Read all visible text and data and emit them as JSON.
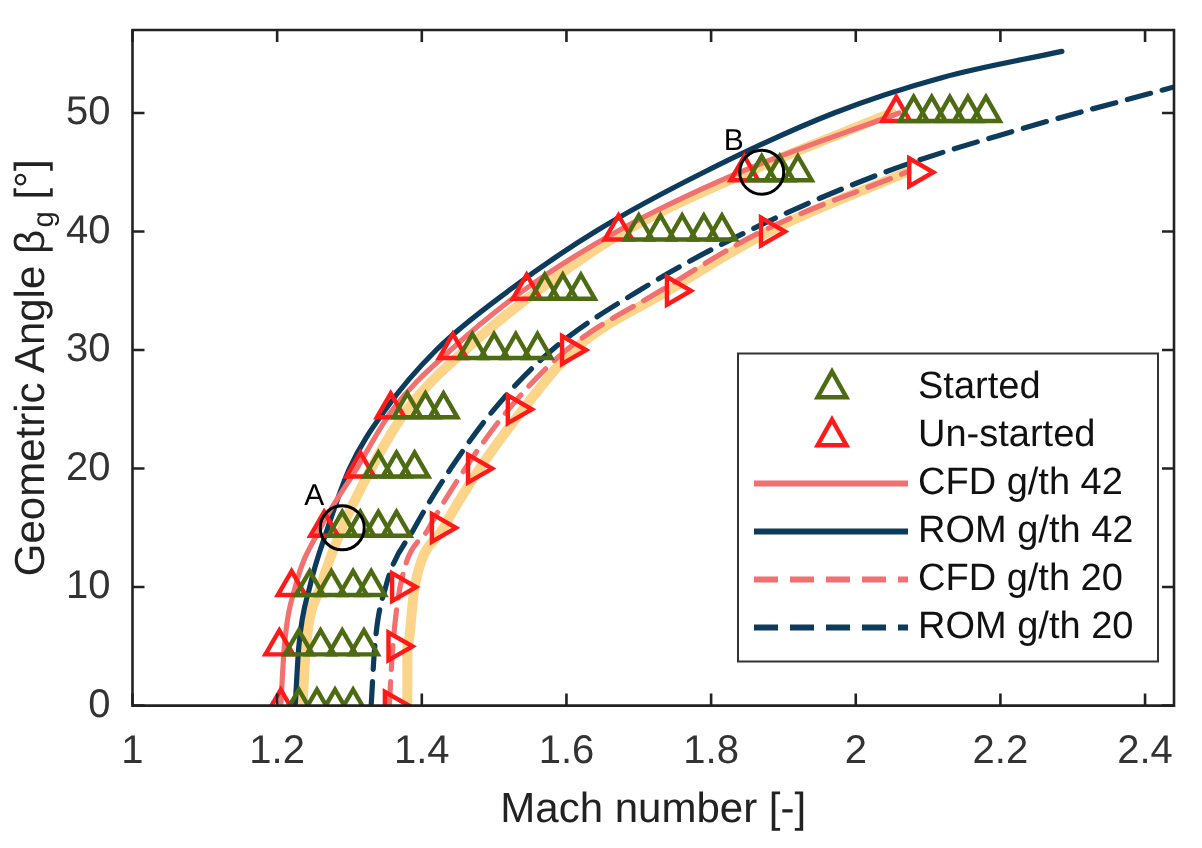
{
  "chart_data": {
    "type": "scatter",
    "xlabel": "Mach number [-]",
    "ylabel": "Geometric Angle β$_{g}$ [°]",
    "xlim": [
      1,
      2.44
    ],
    "xticks": [
      1,
      1.2,
      1.4,
      1.6,
      1.8,
      2,
      2.2,
      2.4
    ],
    "ylim": [
      0,
      57
    ],
    "yticks": [
      0,
      10,
      20,
      30,
      40,
      50
    ],
    "legend": "right",
    "series": [
      {
        "name": "Started",
        "color": "#4d6b12",
        "marker": "triangle",
        "x": [
          1.23,
          1.255,
          1.28,
          1.305,
          1.23,
          1.26,
          1.29,
          1.32,
          1.245,
          1.275,
          1.305,
          1.33,
          1.29,
          1.315,
          1.34,
          1.365,
          1.34,
          1.365,
          1.39,
          1.38,
          1.405,
          1.43,
          1.47,
          1.5,
          1.53,
          1.56,
          1.57,
          1.595,
          1.62,
          1.7,
          1.73,
          1.76,
          1.79,
          1.815,
          1.87,
          1.895,
          1.92,
          2.08,
          2.105,
          2.13,
          2.155,
          2.18
        ],
        "values": [
          0,
          0,
          0,
          0,
          5,
          5,
          5,
          5,
          10,
          10,
          10,
          10,
          15,
          15,
          15,
          15,
          20,
          20,
          20,
          25,
          25,
          25,
          30,
          30,
          30,
          30,
          35,
          35,
          35,
          40,
          40,
          40,
          40,
          40,
          45,
          45,
          45,
          50,
          50,
          50,
          50,
          50
        ]
      },
      {
        "name": "Un-started",
        "color": "#ff1a1a",
        "marker": "triangle",
        "x": [
          1.205,
          1.203,
          1.22,
          1.265,
          1.315,
          1.357,
          1.443,
          1.545,
          1.672,
          1.846,
          2.056
        ],
        "values": [
          0,
          5,
          10,
          15,
          20,
          25,
          30,
          35,
          40,
          45,
          50
        ]
      },
      {
        "name": "CFD g/th 42",
        "type": "line",
        "color": "#f27070",
        "line_style": "solid",
        "marker": "none",
        "x": [
          1.205,
          1.21,
          1.225,
          1.26,
          1.31,
          1.36,
          1.44,
          1.54,
          1.67,
          1.84,
          2.06
        ],
        "values": [
          0,
          5,
          10,
          15,
          20,
          25,
          30,
          35,
          40,
          45,
          50
        ]
      },
      {
        "name": "ROM g/th 42",
        "type": "line",
        "color": "#0d3b5c",
        "line_style": "solid",
        "marker": "none",
        "x": [
          1.225,
          1.23,
          1.245,
          1.27,
          1.3,
          1.35,
          1.42,
          1.52,
          1.64,
          1.79,
          1.97,
          2.12,
          2.285
        ],
        "values": [
          0,
          5,
          10,
          15,
          20,
          25,
          30,
          35,
          40,
          45,
          50,
          53,
          55.2
        ]
      },
      {
        "name": "CFD g/th 20",
        "type": "line",
        "color": "#f27070",
        "line_style": "dashed",
        "marker": "none",
        "x": [
          1.355,
          1.36,
          1.37,
          1.41,
          1.46,
          1.52,
          1.6,
          1.73,
          1.87,
          2.07
        ],
        "values": [
          0,
          5,
          10,
          15,
          20,
          25,
          30,
          35,
          40,
          45
        ]
      },
      {
        "name": "ROM g/th 20",
        "type": "line",
        "color": "#0d3b5c",
        "line_style": "dashed",
        "marker": "none",
        "x": [
          1.33,
          1.335,
          1.35,
          1.39,
          1.44,
          1.5,
          1.58,
          1.7,
          1.85,
          2.04,
          2.22,
          2.44
        ],
        "values": [
          0,
          5,
          10,
          15,
          20,
          25,
          30,
          35,
          40,
          45,
          48.5,
          52.2
        ]
      },
      {
        "color": "#ff1a1a",
        "marker": "triangle",
        "x": [
          1.36,
          1.365,
          1.37,
          1.425,
          1.475,
          1.53,
          1.605,
          1.75,
          1.88,
          2.085
        ],
        "values": [
          0,
          5,
          10,
          15,
          20,
          25,
          30,
          35,
          40,
          45
        ]
      },
      {
        "type": "line",
        "color": "#fdd58a",
        "line_style": "solid",
        "marker": "none",
        "x": [
          1.235,
          1.24,
          1.26,
          1.29,
          1.33,
          1.38,
          1.46,
          1.56,
          1.68,
          1.85,
          2.05
        ],
        "values": [
          0,
          5,
          10,
          15,
          20,
          25,
          30,
          35,
          40,
          45,
          50
        ]
      },
      {
        "type": "line",
        "color": "#fdd58a",
        "line_style": "solid",
        "marker": "none",
        "x": [
          1.38,
          1.38,
          1.39,
          1.43,
          1.48,
          1.54,
          1.61,
          1.74,
          1.88,
          2.07
        ],
        "values": [
          0,
          5,
          10,
          15,
          20,
          25,
          30,
          35,
          40,
          45
        ]
      }
    ],
    "annotations": [
      {
        "text": "A",
        "x": 1.29,
        "y": 15
      },
      {
        "text": "B",
        "x": 1.87,
        "y": 45
      }
    ]
  }
}
